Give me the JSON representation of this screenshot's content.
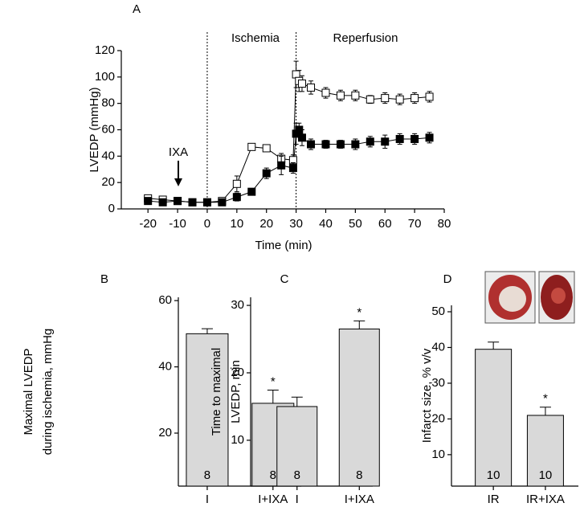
{
  "chart_data": [
    {
      "type": "line",
      "label": "A",
      "xlabel": "Time (min)",
      "ylabel": "LVEDP (mmHg)",
      "annotations": [
        "Ischemia",
        "Reperfusion",
        "IXA"
      ],
      "x": [
        -20,
        -15,
        -10,
        -5,
        0,
        5,
        10,
        15,
        20,
        25,
        29,
        30,
        31,
        32,
        35,
        40,
        45,
        50,
        55,
        60,
        65,
        70,
        75
      ],
      "series": [
        {
          "color": "#000000",
          "fill": "#ffffff",
          "values": [
            8,
            7,
            6,
            5,
            5,
            6,
            19,
            47,
            46,
            38,
            37,
            102,
            97,
            95,
            92,
            88,
            86,
            86,
            83,
            84,
            83,
            84,
            85
          ],
          "errors": [
            2,
            2,
            1,
            1,
            2,
            2,
            6,
            2,
            2,
            4,
            4,
            10,
            8,
            6,
            5,
            4,
            4,
            4,
            3,
            4,
            4,
            4,
            4
          ]
        },
        {
          "color": "#000000",
          "fill": "#000000",
          "values": [
            6,
            5,
            6,
            5,
            5,
            5,
            9,
            13,
            27,
            33,
            31,
            57,
            60,
            54,
            49,
            49,
            49,
            49,
            51,
            51,
            53,
            53,
            54
          ],
          "errors": [
            2,
            2,
            1,
            1,
            2,
            2,
            3,
            2,
            4,
            7,
            4,
            8,
            5,
            6,
            4,
            3,
            3,
            4,
            4,
            5,
            4,
            4,
            4
          ]
        }
      ],
      "vlines": [
        0,
        30
      ],
      "xlim": [
        -29,
        80
      ],
      "xticks": [
        -20,
        -10,
        0,
        10,
        20,
        30,
        40,
        50,
        60,
        70,
        80
      ],
      "ylim": [
        0,
        120
      ],
      "yticks": [
        0,
        20,
        40,
        60,
        80,
        100,
        120
      ]
    },
    {
      "type": "bar",
      "label": "B",
      "ylabel": [
        "Maximal  LVEDP",
        "during ischemia, mmHg"
      ],
      "categories": [
        "I",
        "I+IXA"
      ],
      "values": [
        50,
        29
      ],
      "errors": [
        1.5,
        4
      ],
      "n": [
        8,
        8
      ],
      "marks": [
        null,
        "*"
      ],
      "color": "#d9d9d9",
      "ylim": [
        4,
        61
      ],
      "yticks": [
        20,
        40,
        60
      ]
    },
    {
      "type": "bar",
      "label": "C",
      "ylabel": [
        "Time to maximal",
        "LVEDP,  min"
      ],
      "categories": [
        "I",
        "I+IXA"
      ],
      "values": [
        15,
        26.5
      ],
      "errors": [
        1.4,
        1.2
      ],
      "n": [
        8,
        8
      ],
      "marks": [
        null,
        "*"
      ],
      "color": "#d9d9d9",
      "ylim": [
        3.2,
        31.2
      ],
      "yticks": [
        10,
        20,
        30
      ]
    },
    {
      "type": "bar",
      "label": "D",
      "ylabel": [
        "Infarct size, % v/v"
      ],
      "categories": [
        "IR",
        "IR+IXA"
      ],
      "values": [
        39.5,
        21
      ],
      "errors": [
        2,
        2.3
      ],
      "n": [
        10,
        10
      ],
      "marks": [
        null,
        "*"
      ],
      "color": "#d9d9d9",
      "ylim": [
        1.2,
        51.8
      ],
      "yticks": [
        10,
        20,
        30,
        40,
        50
      ]
    }
  ]
}
